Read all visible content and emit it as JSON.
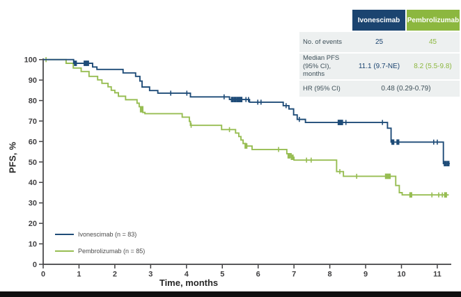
{
  "chart": {
    "ylabel": "PFS, %",
    "xlabel": "Time, months"
  },
  "chart_data": {
    "type": "line",
    "subtype": "kaplan-meier-step",
    "title": "",
    "xlabel": "Time, months",
    "ylabel": "PFS, %",
    "xlim": [
      0,
      11.5
    ],
    "ylim": [
      0,
      100
    ],
    "x_ticks": [
      0,
      1,
      2,
      3,
      4,
      5,
      6,
      7,
      8,
      9,
      10,
      11
    ],
    "y_ticks": [
      0,
      10,
      20,
      30,
      40,
      50,
      60,
      70,
      80,
      90,
      100
    ],
    "grid": false,
    "legend_position": "lower-left",
    "axis_color": "#414042",
    "series": [
      {
        "name": "Ivonescimab (n = 83)",
        "color": "#1f4c78",
        "end_time": 11.35,
        "steps": [
          [
            0,
            100
          ],
          [
            0.85,
            98.2
          ],
          [
            1.38,
            96.4
          ],
          [
            1.5,
            95.2
          ],
          [
            2.23,
            93.5
          ],
          [
            2.58,
            91.8
          ],
          [
            2.7,
            89.5
          ],
          [
            2.76,
            86.6
          ],
          [
            2.97,
            84.9
          ],
          [
            3.2,
            83.6
          ],
          [
            4.11,
            81.8
          ],
          [
            5.2,
            80.5
          ],
          [
            5.76,
            79.2
          ],
          [
            6.7,
            77.5
          ],
          [
            6.86,
            75.9
          ],
          [
            6.99,
            73.0
          ],
          [
            7.09,
            70.8
          ],
          [
            7.32,
            69.3
          ],
          [
            9.61,
            66.5
          ],
          [
            9.71,
            59.7
          ],
          [
            11.17,
            49.2
          ]
        ],
        "censor_ticks": [
          [
            3.56,
            83.6
          ],
          [
            4.01,
            83.6
          ],
          [
            5.05,
            81.8
          ],
          [
            5.66,
            80.5
          ],
          [
            5.73,
            80.5
          ],
          [
            5.99,
            79.2
          ],
          [
            6.08,
            79.2
          ],
          [
            6.78,
            77.5
          ],
          [
            7.15,
            70.8
          ],
          [
            8.45,
            69.3
          ],
          [
            9.47,
            69.3
          ],
          [
            10.9,
            59.7
          ],
          [
            11.0,
            59.7
          ]
        ],
        "censor_bold": [
          [
            0.9,
            98.2
          ],
          [
            1.17,
            98.2
          ],
          [
            1.24,
            98.2
          ],
          [
            5.28,
            80.5
          ],
          [
            5.36,
            80.5
          ],
          [
            5.44,
            80.5
          ],
          [
            5.52,
            80.5
          ],
          [
            8.26,
            69.3
          ],
          [
            8.33,
            69.3
          ],
          [
            9.76,
            59.7
          ],
          [
            9.9,
            59.7
          ],
          [
            11.22,
            49.2
          ],
          [
            11.3,
            49.2
          ]
        ]
      },
      {
        "name": "Pembrolizumab (n = 85)",
        "color": "#97bd52",
        "end_time": 11.32,
        "steps": [
          [
            0,
            100
          ],
          [
            0.64,
            98.2
          ],
          [
            0.84,
            95.9
          ],
          [
            1.06,
            94.2
          ],
          [
            1.28,
            91.8
          ],
          [
            1.52,
            90.1
          ],
          [
            1.64,
            88.4
          ],
          [
            1.81,
            86.7
          ],
          [
            1.9,
            85.0
          ],
          [
            2.0,
            83.8
          ],
          [
            2.1,
            82.1
          ],
          [
            2.3,
            80.4
          ],
          [
            2.62,
            78.7
          ],
          [
            2.68,
            77.0
          ],
          [
            2.78,
            74.2
          ],
          [
            2.84,
            73.6
          ],
          [
            3.88,
            71.9
          ],
          [
            4.08,
            69.8
          ],
          [
            4.11,
            67.9
          ],
          [
            4.98,
            65.8
          ],
          [
            5.37,
            64.1
          ],
          [
            5.46,
            62.4
          ],
          [
            5.52,
            60.7
          ],
          [
            5.58,
            59.0
          ],
          [
            5.66,
            57.8
          ],
          [
            5.83,
            56.1
          ],
          [
            6.8,
            54.0
          ],
          [
            6.92,
            52.3
          ],
          [
            7.0,
            50.9
          ],
          [
            8.19,
            45.3
          ],
          [
            8.38,
            43.0
          ],
          [
            9.84,
            38.5
          ],
          [
            9.94,
            35.0
          ],
          [
            10.02,
            33.9
          ]
        ],
        "censor_ticks": [
          [
            0.08,
            100
          ],
          [
            4.13,
            67.9
          ],
          [
            5.2,
            65.8
          ],
          [
            6.57,
            56.1
          ],
          [
            7.35,
            50.9
          ],
          [
            7.48,
            50.9
          ],
          [
            8.28,
            45.3
          ],
          [
            8.75,
            43.0
          ],
          [
            10.85,
            33.9
          ],
          [
            11.04,
            33.9
          ],
          [
            11.14,
            33.9
          ]
        ],
        "censor_bold": [
          [
            2.74,
            75.5
          ],
          [
            5.66,
            57.8
          ],
          [
            6.86,
            53.0
          ],
          [
            6.95,
            52.3
          ],
          [
            9.58,
            43.0
          ],
          [
            9.66,
            43.0
          ],
          [
            10.26,
            33.9
          ],
          [
            11.23,
            33.9
          ]
        ]
      }
    ]
  },
  "stats_table": {
    "columns": [
      {
        "label": "Ivonescimab",
        "color": "#1b4470"
      },
      {
        "label": "Pembrolizumab",
        "color": "#8cb73f"
      }
    ],
    "rows": [
      {
        "label1": "No. of events",
        "label2": "",
        "v1": "25",
        "v2": "45"
      },
      {
        "label1": "Median PFS",
        "label2": "(95% CI), months",
        "v1": "11.1 (9.7-NE)",
        "v2": "8.2 (5.5-9.8)"
      },
      {
        "label1": "HR (95% CI)",
        "label2": "",
        "combined": "0.48 (0.29-0.79)"
      }
    ]
  },
  "legend": {
    "items": [
      {
        "label": "Ivonescimab (n = 83)"
      },
      {
        "label": "Pembrolizumab (n = 85)"
      }
    ]
  }
}
